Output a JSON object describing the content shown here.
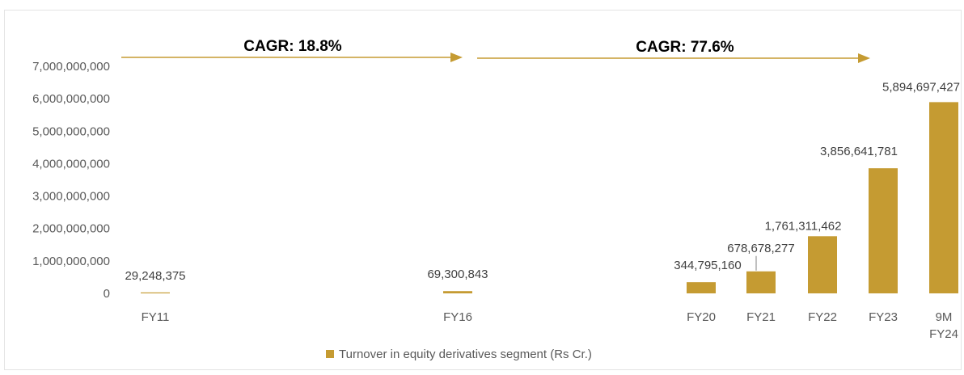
{
  "chart_data": {
    "type": "bar",
    "categories": [
      "FY11",
      "FY16",
      "FY20",
      "FY21",
      "FY22",
      "FY23",
      "9M FY24"
    ],
    "values": [
      29248375,
      69300843,
      344795160,
      678678277,
      1761311462,
      3856641781,
      5894697427
    ],
    "value_labels": [
      "29,248,375",
      "69,300,843",
      "344,795,160",
      "678,678,277",
      "1,761,311,462",
      "3,856,641,781",
      "5,894,697,427"
    ],
    "series_name": "Turnover in equity derivatives segment (Rs Cr.)",
    "ylim": [
      0,
      7000000000
    ],
    "y_ticks": [
      "0",
      "1,000,000,000",
      "2,000,000,000",
      "3,000,000,000",
      "4,000,000,000",
      "5,000,000,000",
      "6,000,000,000",
      "7,000,000,000"
    ],
    "gridlines": false,
    "legend_position": "bottom",
    "bar_color": "#C59B32",
    "arrow_color": "#C59B32",
    "annotations": [
      {
        "text": "CAGR: 18.8%",
        "from": "FY11",
        "to": "FY16"
      },
      {
        "text": "CAGR: 77.6%",
        "from": "FY16",
        "to": "9M FY24"
      }
    ]
  }
}
